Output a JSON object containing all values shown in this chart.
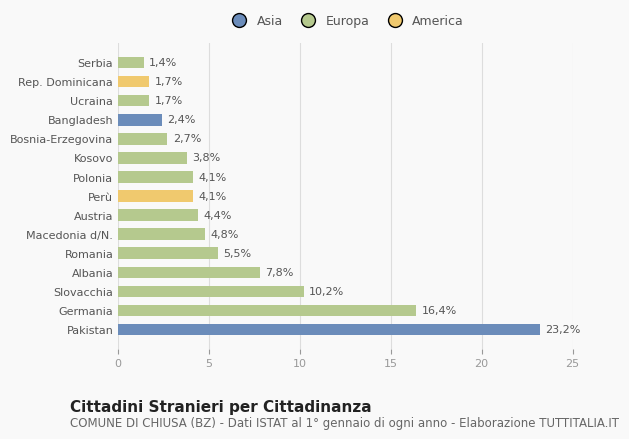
{
  "categories": [
    "Pakistan",
    "Germania",
    "Slovacchia",
    "Albania",
    "Romania",
    "Macedonia d/N.",
    "Austria",
    "Perù",
    "Polonia",
    "Kosovo",
    "Bosnia-Erzegovina",
    "Bangladesh",
    "Ucraina",
    "Rep. Dominicana",
    "Serbia"
  ],
  "values": [
    23.2,
    16.4,
    10.2,
    7.8,
    5.5,
    4.8,
    4.4,
    4.1,
    4.1,
    3.8,
    2.7,
    2.4,
    1.7,
    1.7,
    1.4
  ],
  "labels": [
    "23,2%",
    "16,4%",
    "10,2%",
    "7,8%",
    "5,5%",
    "4,8%",
    "4,4%",
    "4,1%",
    "4,1%",
    "3,8%",
    "2,7%",
    "2,4%",
    "1,7%",
    "1,7%",
    "1,4%"
  ],
  "colors": [
    "#6b8cba",
    "#b5c98e",
    "#b5c98e",
    "#b5c98e",
    "#b5c98e",
    "#b5c98e",
    "#b5c98e",
    "#f0c96e",
    "#b5c98e",
    "#b5c98e",
    "#b5c98e",
    "#6b8cba",
    "#b5c98e",
    "#f0c96e",
    "#b5c98e"
  ],
  "continent_colors": {
    "Asia": "#6b8cba",
    "Europa": "#b5c98e",
    "America": "#f0c96e"
  },
  "xlim": [
    0,
    25
  ],
  "xticks": [
    0,
    5,
    10,
    15,
    20,
    25
  ],
  "title": "Cittadini Stranieri per Cittadinanza",
  "subtitle": "COMUNE DI CHIUSA (BZ) - Dati ISTAT al 1° gennaio di ogni anno - Elaborazione TUTTITALIA.IT",
  "background_color": "#f9f9f9",
  "bar_height": 0.6,
  "title_fontsize": 11,
  "subtitle_fontsize": 8.5,
  "label_fontsize": 8,
  "tick_fontsize": 8,
  "legend_fontsize": 9
}
